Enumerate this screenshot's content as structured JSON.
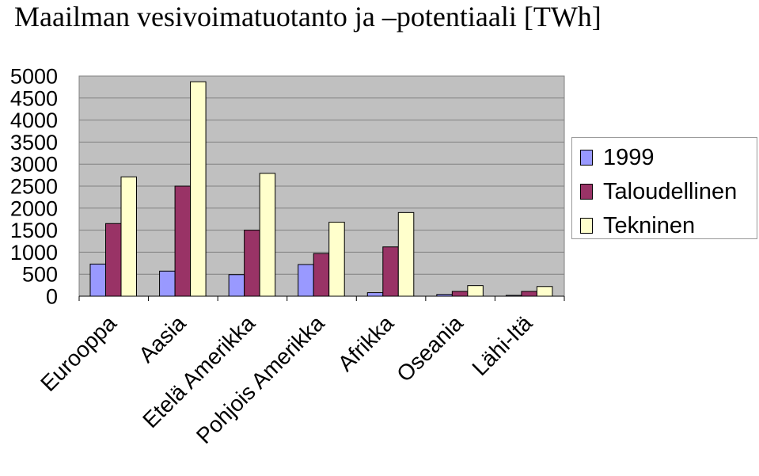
{
  "title": "Maailman vesivoimatuotanto ja –potentiaali [TWh]",
  "chart_data": {
    "type": "bar",
    "categories": [
      "Eurooppa",
      "Aasia",
      "Etelä Amerikka",
      "Pohjois Amerikka",
      "Afrikka",
      "Oseania",
      "Lähi-Itä"
    ],
    "series": [
      {
        "name": "1999",
        "color": "#9999ff",
        "values": [
          730,
          570,
          490,
          720,
          80,
          40,
          20
        ]
      },
      {
        "name": "Taloudellinen",
        "color": "#993366",
        "values": [
          1650,
          2500,
          1500,
          970,
          1120,
          110,
          110
        ]
      },
      {
        "name": "Tekninen",
        "color": "#ffffcc",
        "values": [
          2710,
          4870,
          2790,
          1680,
          1900,
          240,
          220
        ]
      }
    ],
    "ylim": [
      0,
      5000
    ],
    "yticks": [
      "5000",
      "4500",
      "4000",
      "3500",
      "3000",
      "2500",
      "2000",
      "1500",
      "1000",
      "500",
      "0"
    ],
    "grid": true,
    "legend_position": "right"
  }
}
